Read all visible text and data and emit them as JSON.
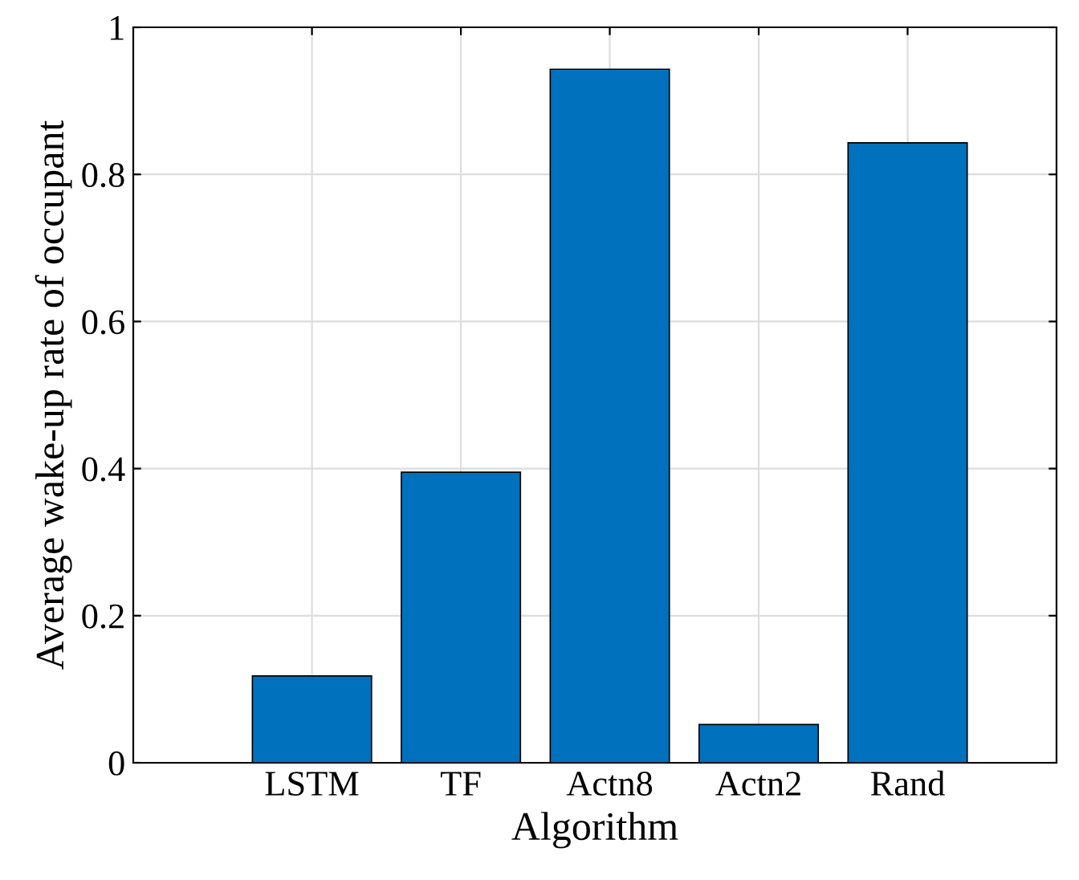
{
  "chart_data": {
    "type": "bar",
    "xlabel": "Algorithm",
    "ylabel": "Average wake-up rate of occupant",
    "categories": [
      "LSTM",
      "TF",
      "Actn8",
      "Actn2",
      "Rand"
    ],
    "values": [
      0.118,
      0.395,
      0.943,
      0.052,
      0.843
    ],
    "color": "#0072bd",
    "ylim": [
      0,
      1
    ],
    "yticks": [
      0,
      0.2,
      0.4,
      0.6,
      0.8,
      1
    ],
    "grid": true
  }
}
